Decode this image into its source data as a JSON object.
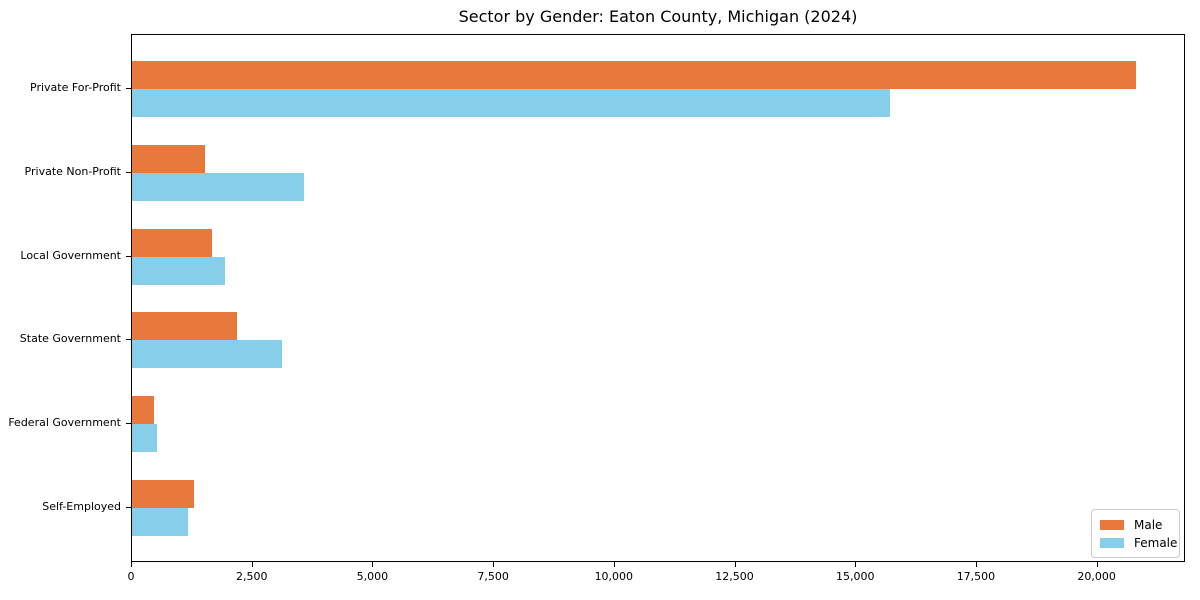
{
  "chart_data": {
    "type": "bar",
    "orientation": "horizontal",
    "title": "Sector by Gender: Eaton County, Michigan (2024)",
    "categories": [
      "Private For-Profit",
      "Private Non-Profit",
      "Local Government",
      "State Government",
      "Federal Government",
      "Self-Employed"
    ],
    "series": [
      {
        "name": "Male",
        "color": "#e8793d",
        "values": [
          20800,
          1510,
          1660,
          2170,
          460,
          1290
        ]
      },
      {
        "name": "Female",
        "color": "#87ceeb",
        "values": [
          15700,
          3560,
          1930,
          3110,
          510,
          1170
        ]
      }
    ],
    "xlabel": "",
    "ylabel": "",
    "xlim": [
      0,
      21830
    ],
    "xticks": [
      0,
      2500,
      5000,
      7500,
      10000,
      12500,
      15000,
      17500,
      20000
    ],
    "xtick_labels": [
      "0",
      "2,500",
      "5,000",
      "7,500",
      "10,000",
      "12,500",
      "15,000",
      "17,500",
      "20,000"
    ],
    "grid": false,
    "legend": {
      "position": "lower right",
      "entries": [
        "Male",
        "Female"
      ]
    }
  }
}
